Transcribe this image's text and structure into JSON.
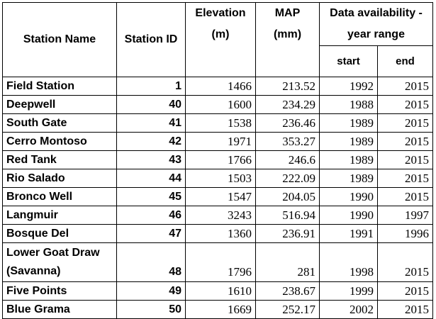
{
  "header": {
    "station_name": "Station Name",
    "station_id": "Station ID",
    "elevation_line1": "Elevation",
    "elevation_line2": "(m)",
    "map_line1": "MAP",
    "map_line2": "(mm)",
    "availability_line1": "Data availability -",
    "availability_line2": "year range",
    "start": "start",
    "end": "end"
  },
  "rows": [
    {
      "name": "Field Station",
      "id": "1",
      "elevation": "1466",
      "map": "213.52",
      "start": "1992",
      "end": "2015"
    },
    {
      "name": "Deepwell",
      "id": "40",
      "elevation": "1600",
      "map": "234.29",
      "start": "1988",
      "end": "2015"
    },
    {
      "name": "South Gate",
      "id": "41",
      "elevation": "1538",
      "map": "236.46",
      "start": "1989",
      "end": "2015"
    },
    {
      "name": "Cerro Montoso",
      "id": "42",
      "elevation": "1971",
      "map": "353.27",
      "start": "1989",
      "end": "2015"
    },
    {
      "name": "Red Tank",
      "id": "43",
      "elevation": "1766",
      "map": "246.6",
      "start": "1989",
      "end": "2015"
    },
    {
      "name": "Rio Salado",
      "id": "44",
      "elevation": "1503",
      "map": "222.09",
      "start": "1989",
      "end": "2015"
    },
    {
      "name": "Bronco Well",
      "id": "45",
      "elevation": "1547",
      "map": "204.05",
      "start": "1990",
      "end": "2015"
    },
    {
      "name": "Langmuir",
      "id": "46",
      "elevation": "3243",
      "map": "516.94",
      "start": "1990",
      "end": "1997"
    },
    {
      "name": "Bosque Del",
      "id": "47",
      "elevation": "1360",
      "map": "236.91",
      "start": "1991",
      "end": "1996"
    },
    {
      "name_line1": "Lower Goat Draw",
      "name_line2": "(Savanna)",
      "id": "48",
      "elevation": "1796",
      "map": "281",
      "start": "1998",
      "end": "2015"
    },
    {
      "name": "Five Points",
      "id": "49",
      "elevation": "1610",
      "map": "238.67",
      "start": "1999",
      "end": "2015"
    },
    {
      "name": "Blue Grama",
      "id": "50",
      "elevation": "1669",
      "map": "252.17",
      "start": "2002",
      "end": "2015"
    }
  ]
}
